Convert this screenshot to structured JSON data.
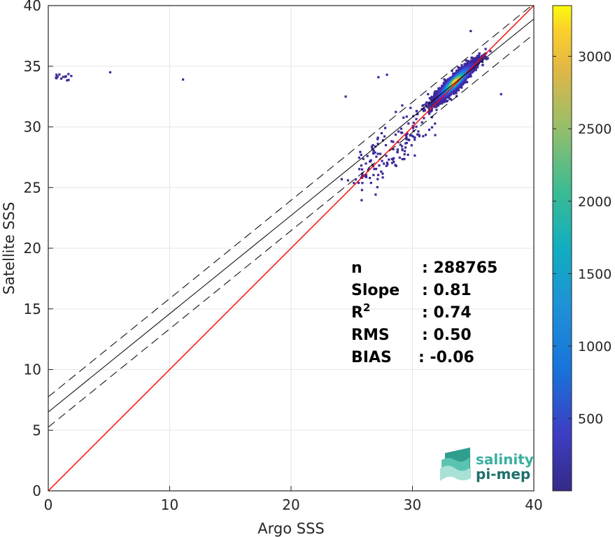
{
  "chart_data": {
    "type": "heatmap",
    "title": "",
    "xlabel": "Argo SSS",
    "ylabel": "Satellite SSS",
    "xlim": [
      0,
      40
    ],
    "ylim": [
      0,
      40
    ],
    "xticks": [
      "0",
      "10",
      "20",
      "30",
      "40"
    ],
    "yticks": [
      "0",
      "5",
      "10",
      "15",
      "20",
      "25",
      "30",
      "35",
      "40"
    ],
    "grid": true,
    "colormap": "parula",
    "colorbar": {
      "range": [
        1,
        3350
      ],
      "ticks": [
        "500",
        "1000",
        "1500",
        "2000",
        "2500",
        "3000"
      ],
      "tick_values": [
        500,
        1000,
        1500,
        2000,
        2500,
        3000
      ]
    },
    "density_core": {
      "x_center": 33.5,
      "y_center": 33.7,
      "peak_count": 3350
    },
    "lines": [
      {
        "name": "identity",
        "slope": 1.0,
        "intercept": 0,
        "color": "#ff0000",
        "style": "solid"
      },
      {
        "name": "regression",
        "slope": 0.81,
        "intercept": 6.5,
        "color": "#000000",
        "style": "solid"
      },
      {
        "name": "regression-upper",
        "slope": 0.81,
        "intercept": 7.75,
        "color": "#000000",
        "style": "dashed"
      },
      {
        "name": "regression-lower",
        "slope": 0.81,
        "intercept": 5.25,
        "color": "#000000",
        "style": "dashed"
      }
    ],
    "stats": [
      {
        "label": "n",
        "sup": "",
        "value": ": 288765"
      },
      {
        "label": "Slope",
        "sup": "",
        "value": ": 0.81"
      },
      {
        "label": "R",
        "sup": "2",
        "value": ": 0.74"
      },
      {
        "label": "RMS",
        "sup": "",
        "value": ": 0.50"
      },
      {
        "label": "BIAS",
        "sup": "",
        "value": ": -0.06"
      }
    ]
  },
  "logo": {
    "line1": "salinity",
    "line2": "pi-mep",
    "color1": "#3ab0a0",
    "color2": "#1f6f6a"
  }
}
